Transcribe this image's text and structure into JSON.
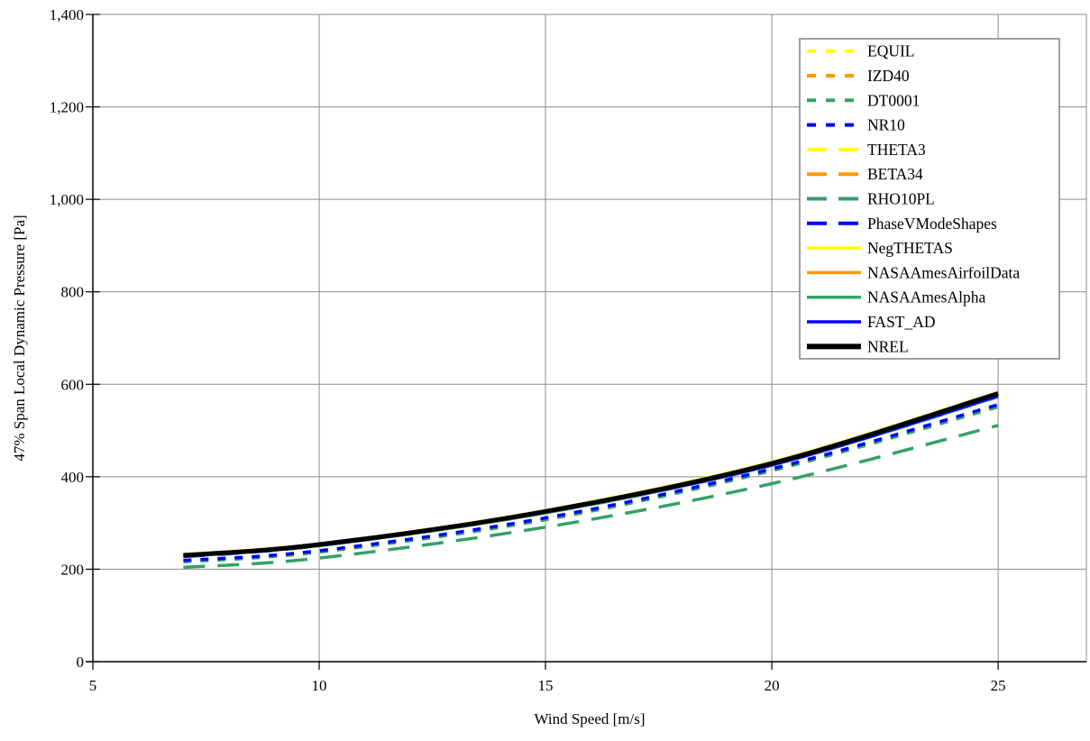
{
  "chart_data": {
    "type": "line",
    "title": "",
    "xlabel": "Wind Speed [m/s]",
    "ylabel": "47% Span Local Dynamic Pressure [Pa]",
    "xlim": [
      5,
      26.95
    ],
    "ylim": [
      0,
      1400
    ],
    "x_ticks": [
      5,
      10,
      15,
      20,
      25
    ],
    "x_tick_labels": [
      "5",
      "10",
      "15",
      "20",
      "25"
    ],
    "y_ticks": [
      0,
      200,
      400,
      600,
      800,
      1000,
      1200,
      1400
    ],
    "y_tick_labels": [
      "0",
      "200",
      "400",
      "600",
      "800",
      "1,000",
      "1,200",
      "1,400"
    ],
    "grid": true,
    "grid_color": "#8c8c8c",
    "axis_color": "#000000",
    "legend_position": "top-right",
    "legend_border_color": "#808080",
    "x": [
      7,
      10,
      15,
      20,
      25
    ],
    "series": [
      {
        "name": "EQUIL",
        "color": "#ffff00",
        "style": "short-dash",
        "width": 3.5,
        "values": [
          228,
          251,
          322,
          426,
          575
        ]
      },
      {
        "name": "IZD40",
        "color": "#ff9900",
        "style": "short-dash",
        "width": 3.5,
        "values": [
          228,
          251,
          322,
          426,
          575
        ]
      },
      {
        "name": "DT0001",
        "color": "#36a165",
        "style": "short-dash",
        "width": 3.5,
        "values": [
          216,
          237,
          307,
          413,
          551
        ]
      },
      {
        "name": "NR10",
        "color": "#0000ff",
        "style": "short-dash",
        "width": 3.5,
        "values": [
          219,
          240,
          311,
          417,
          556
        ]
      },
      {
        "name": "THETA3",
        "color": "#ffff00",
        "style": "long-dash",
        "width": 3.5,
        "values": [
          228,
          252,
          323,
          426,
          575
        ]
      },
      {
        "name": "BETA34",
        "color": "#ff9900",
        "style": "long-dash",
        "width": 3.5,
        "values": [
          228,
          252,
          323,
          426,
          575
        ]
      },
      {
        "name": "RHO10PL",
        "color": "#36a165",
        "style": "long-dash",
        "width": 3.5,
        "values": [
          204,
          224,
          291,
          385,
          511
        ]
      },
      {
        "name": "PhaseVModeShapes",
        "color": "#0000ff",
        "style": "long-dash",
        "width": 3.5,
        "values": [
          227,
          251,
          322,
          425,
          573
        ]
      },
      {
        "name": "NegTHETAS",
        "color": "#ffff00",
        "style": "solid",
        "width": 2.5,
        "values": [
          233,
          256,
          328,
          433,
          583
        ]
      },
      {
        "name": "NASAAmesAirfoilData",
        "color": "#ff9900",
        "style": "solid",
        "width": 2.5,
        "values": [
          229,
          253,
          324,
          428,
          577
        ]
      },
      {
        "name": "NASAAmesAlpha",
        "color": "#36a165",
        "style": "solid",
        "width": 2.5,
        "values": [
          227,
          250,
          321,
          424,
          572
        ]
      },
      {
        "name": "FAST_AD",
        "color": "#0000ff",
        "style": "solid",
        "width": 2.5,
        "values": [
          228,
          256,
          323,
          425,
          574
        ]
      },
      {
        "name": "NREL",
        "color": "#000000",
        "style": "solid",
        "width": 5,
        "values": [
          230,
          253,
          325,
          429,
          580
        ]
      }
    ],
    "draw_order": [
      "EQUIL",
      "IZD40",
      "THETA3",
      "BETA34",
      "PhaseVModeShapes",
      "NASAAmesAlpha",
      "DT0001",
      "NR10",
      "RHO10PL",
      "NegTHETAS",
      "NASAAmesAirfoilData",
      "FAST_AD",
      "NREL"
    ]
  }
}
